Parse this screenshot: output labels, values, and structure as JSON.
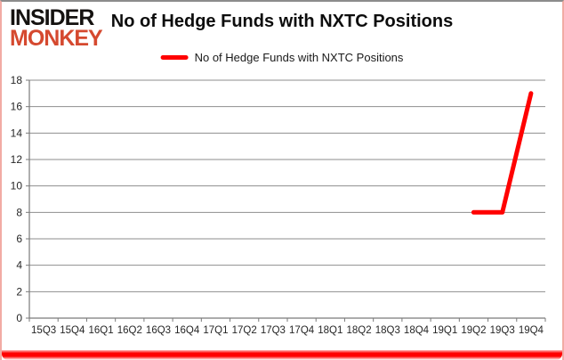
{
  "brand": {
    "line1": "INSIDER",
    "line2": "MONKEY",
    "accent_color": "#d5492f"
  },
  "header": {
    "title": "No of Hedge Funds with NXTC Positions"
  },
  "legend": {
    "label": "No of Hedge Funds with NXTC Positions",
    "swatch_color": "#ff0000"
  },
  "colors": {
    "series_red": "#ff0000",
    "grid": "#8e8e8e",
    "axis": "#7a7a7a",
    "tick_text": "#262626",
    "frame_side_pink": "#f2aba4",
    "frame_top_gray": "#8c8c8c"
  },
  "chart_data": {
    "type": "line",
    "title": "No of Hedge Funds with NXTC Positions",
    "categories": [
      "15Q3",
      "15Q4",
      "16Q1",
      "16Q2",
      "16Q3",
      "16Q4",
      "17Q1",
      "17Q2",
      "17Q3",
      "17Q4",
      "18Q1",
      "18Q2",
      "18Q3",
      "18Q4",
      "19Q1",
      "19Q2",
      "19Q3",
      "19Q4"
    ],
    "series": [
      {
        "name": "No of Hedge Funds with NXTC Positions",
        "color": "#ff0000",
        "values": [
          null,
          null,
          null,
          null,
          null,
          null,
          null,
          null,
          null,
          null,
          null,
          null,
          null,
          null,
          null,
          8,
          8,
          17
        ]
      }
    ],
    "ylim": [
      0,
      18
    ],
    "ytick_step": 2,
    "grid": "horizontal",
    "legend_position": "top"
  }
}
